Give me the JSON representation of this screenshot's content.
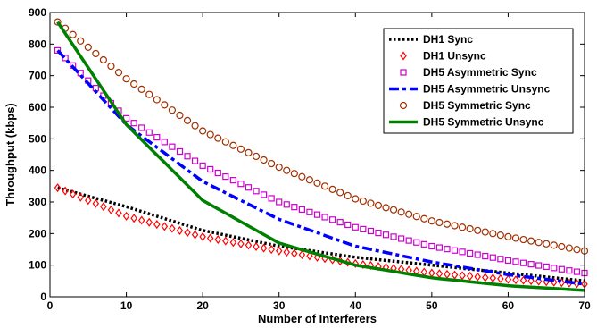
{
  "chart_data": {
    "type": "line",
    "xlabel": "Number of Interferers",
    "ylabel": "Throughput (kbps)",
    "xlim": [
      0,
      70
    ],
    "ylim": [
      0,
      900
    ],
    "xticks": [
      0,
      10,
      20,
      30,
      40,
      50,
      60,
      70
    ],
    "yticks": [
      0,
      100,
      200,
      300,
      400,
      500,
      600,
      700,
      800,
      900
    ],
    "grid": false,
    "legend_position": "top-right",
    "x": [
      1,
      10,
      20,
      30,
      40,
      50,
      60,
      70
    ],
    "series": [
      {
        "name": "DH1 Sync",
        "style": "dotted",
        "color": "#000000",
        "marker": "none",
        "values": [
          345,
          285,
          210,
          160,
          125,
          100,
          75,
          50
        ]
      },
      {
        "name": "DH1 Unsync",
        "style": "none",
        "color": "#ff0000",
        "marker": "diamond",
        "values": [
          345,
          255,
          190,
          145,
          105,
          75,
          55,
          40
        ]
      },
      {
        "name": "DH5 Asymmetric Sync",
        "style": "none",
        "color": "#cc00cc",
        "marker": "square",
        "values": [
          780,
          565,
          415,
          300,
          220,
          160,
          115,
          75
        ]
      },
      {
        "name": "DH5 Asymmetric Unsync",
        "style": "dashdot",
        "color": "#0000ff",
        "marker": "none",
        "values": [
          780,
          545,
          365,
          245,
          160,
          110,
          70,
          40
        ]
      },
      {
        "name": "DH5 Symmetric Sync",
        "style": "none",
        "color": "#a03000",
        "marker": "circle",
        "values": [
          870,
          690,
          525,
          410,
          310,
          240,
          190,
          145
        ]
      },
      {
        "name": "DH5 Symmetric Unsync",
        "style": "solid",
        "color": "#008000",
        "marker": "none",
        "values": [
          870,
          545,
          305,
          170,
          100,
          60,
          35,
          20
        ]
      }
    ]
  }
}
